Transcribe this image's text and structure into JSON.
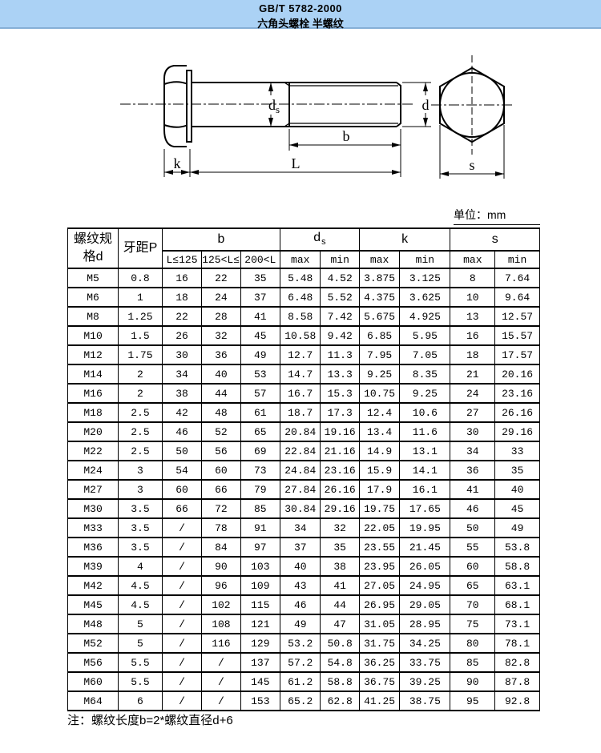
{
  "header": {
    "standard": "GB/T 5782-2000",
    "title": "六角头螺栓 半螺纹",
    "band_color": "#abd2f5"
  },
  "drawing": {
    "labels": {
      "ds_main": "d",
      "ds_sub": "s",
      "d": "d",
      "b": "b",
      "l": "L",
      "k": "k",
      "s": "s"
    }
  },
  "table": {
    "unit_note": "单位：mm",
    "col1_header_line1": "螺纹规",
    "col1_header_line2": "格d",
    "col2_header": "牙距P",
    "group_headers": {
      "b": "b",
      "ds_main": "d",
      "ds_sub": "s",
      "k": "k",
      "s": "s"
    },
    "sub_headers": {
      "b1": "L≤125",
      "b2": "125<L≤200",
      "b3": "200<L",
      "max": "max",
      "min": "min"
    },
    "rows": [
      [
        "M5",
        "0.8",
        "16",
        "22",
        "35",
        "5.48",
        "4.52",
        "3.875",
        "3.125",
        "8",
        "7.64"
      ],
      [
        "M6",
        "1",
        "18",
        "24",
        "37",
        "6.48",
        "5.52",
        "4.375",
        "3.625",
        "10",
        "9.64"
      ],
      [
        "M8",
        "1.25",
        "22",
        "28",
        "41",
        "8.58",
        "7.42",
        "5.675",
        "4.925",
        "13",
        "12.57"
      ],
      [
        "M10",
        "1.5",
        "26",
        "32",
        "45",
        "10.58",
        "9.42",
        "6.85",
        "5.95",
        "16",
        "15.57"
      ],
      [
        "M12",
        "1.75",
        "30",
        "36",
        "49",
        "12.7",
        "11.3",
        "7.95",
        "7.05",
        "18",
        "17.57"
      ],
      [
        "M14",
        "2",
        "34",
        "40",
        "53",
        "14.7",
        "13.3",
        "9.25",
        "8.35",
        "21",
        "20.16"
      ],
      [
        "M16",
        "2",
        "38",
        "44",
        "57",
        "16.7",
        "15.3",
        "10.75",
        "9.25",
        "24",
        "23.16"
      ],
      [
        "M18",
        "2.5",
        "42",
        "48",
        "61",
        "18.7",
        "17.3",
        "12.4",
        "10.6",
        "27",
        "26.16"
      ],
      [
        "M20",
        "2.5",
        "46",
        "52",
        "65",
        "20.84",
        "19.16",
        "13.4",
        "11.6",
        "30",
        "29.16"
      ],
      [
        "M22",
        "2.5",
        "50",
        "56",
        "69",
        "22.84",
        "21.16",
        "14.9",
        "13.1",
        "34",
        "33"
      ],
      [
        "M24",
        "3",
        "54",
        "60",
        "73",
        "24.84",
        "23.16",
        "15.9",
        "14.1",
        "36",
        "35"
      ],
      [
        "M27",
        "3",
        "60",
        "66",
        "79",
        "27.84",
        "26.16",
        "17.9",
        "16.1",
        "41",
        "40"
      ],
      [
        "M30",
        "3.5",
        "66",
        "72",
        "85",
        "30.84",
        "29.16",
        "19.75",
        "17.65",
        "46",
        "45"
      ],
      [
        "M33",
        "3.5",
        "/",
        "78",
        "91",
        "34",
        "32",
        "22.05",
        "19.95",
        "50",
        "49"
      ],
      [
        "M36",
        "3.5",
        "/",
        "84",
        "97",
        "37",
        "35",
        "23.55",
        "21.45",
        "55",
        "53.8"
      ],
      [
        "M39",
        "4",
        "/",
        "90",
        "103",
        "40",
        "38",
        "23.95",
        "26.05",
        "60",
        "58.8"
      ],
      [
        "M42",
        "4.5",
        "/",
        "96",
        "109",
        "43",
        "41",
        "27.05",
        "24.95",
        "65",
        "63.1"
      ],
      [
        "M45",
        "4.5",
        "/",
        "102",
        "115",
        "46",
        "44",
        "26.95",
        "29.05",
        "70",
        "68.1"
      ],
      [
        "M48",
        "5",
        "/",
        "108",
        "121",
        "49",
        "47",
        "31.05",
        "28.95",
        "75",
        "73.1"
      ],
      [
        "M52",
        "5",
        "/",
        "116",
        "129",
        "53.2",
        "50.8",
        "31.75",
        "34.25",
        "80",
        "78.1"
      ],
      [
        "M56",
        "5.5",
        "/",
        "/",
        "137",
        "57.2",
        "54.8",
        "36.25",
        "33.75",
        "85",
        "82.8"
      ],
      [
        "M60",
        "5.5",
        "/",
        "/",
        "145",
        "61.2",
        "58.8",
        "36.75",
        "39.25",
        "90",
        "87.8"
      ],
      [
        "M64",
        "6",
        "/",
        "/",
        "153",
        "65.2",
        "62.8",
        "41.25",
        "38.75",
        "95",
        "92.8"
      ]
    ]
  },
  "footnote": "注：螺纹长度b=2*螺纹直径d+6"
}
